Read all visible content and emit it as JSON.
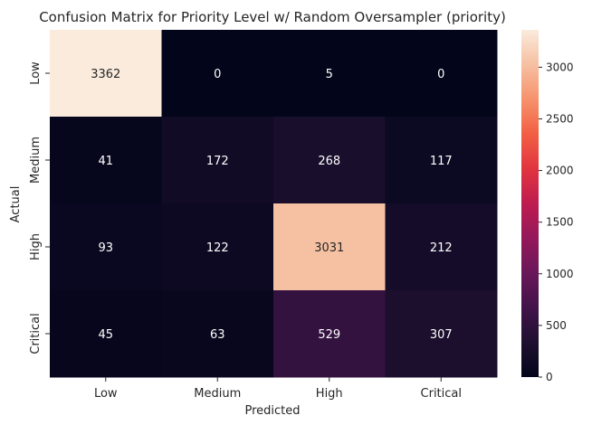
{
  "chart_data": {
    "type": "heatmap",
    "title": "Confusion Matrix for Priority Level w/ Random Oversampler (priority)",
    "xlabel": "Predicted",
    "ylabel": "Actual",
    "x_categories": [
      "Low",
      "Medium",
      "High",
      "Critical"
    ],
    "y_categories": [
      "Low",
      "Medium",
      "High",
      "Critical"
    ],
    "values": [
      [
        3362,
        0,
        5,
        0
      ],
      [
        41,
        172,
        268,
        117
      ],
      [
        93,
        122,
        3031,
        212
      ],
      [
        45,
        63,
        529,
        307
      ]
    ],
    "colorbar": {
      "ticks": [
        0,
        500,
        1000,
        1500,
        2000,
        2500,
        3000
      ],
      "range": [
        0,
        3362
      ],
      "colormap": "rocket"
    }
  }
}
